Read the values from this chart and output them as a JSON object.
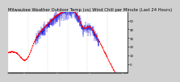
{
  "title": "Milwaukee Weather Outdoor Temp (vs) Wind Chill per Minute (Last 24 Hours)",
  "bg_color": "#d0d0d0",
  "plot_bg_color": "#ffffff",
  "line1_color": "#ff0000",
  "line2_color": "#0000dd",
  "ylim": [
    -10,
    60
  ],
  "yticks": [
    0,
    10,
    20,
    30,
    40,
    50
  ],
  "n_points": 1440,
  "title_fontsize": 3.8,
  "tick_fontsize": 2.8,
  "n_gridlines": 7
}
